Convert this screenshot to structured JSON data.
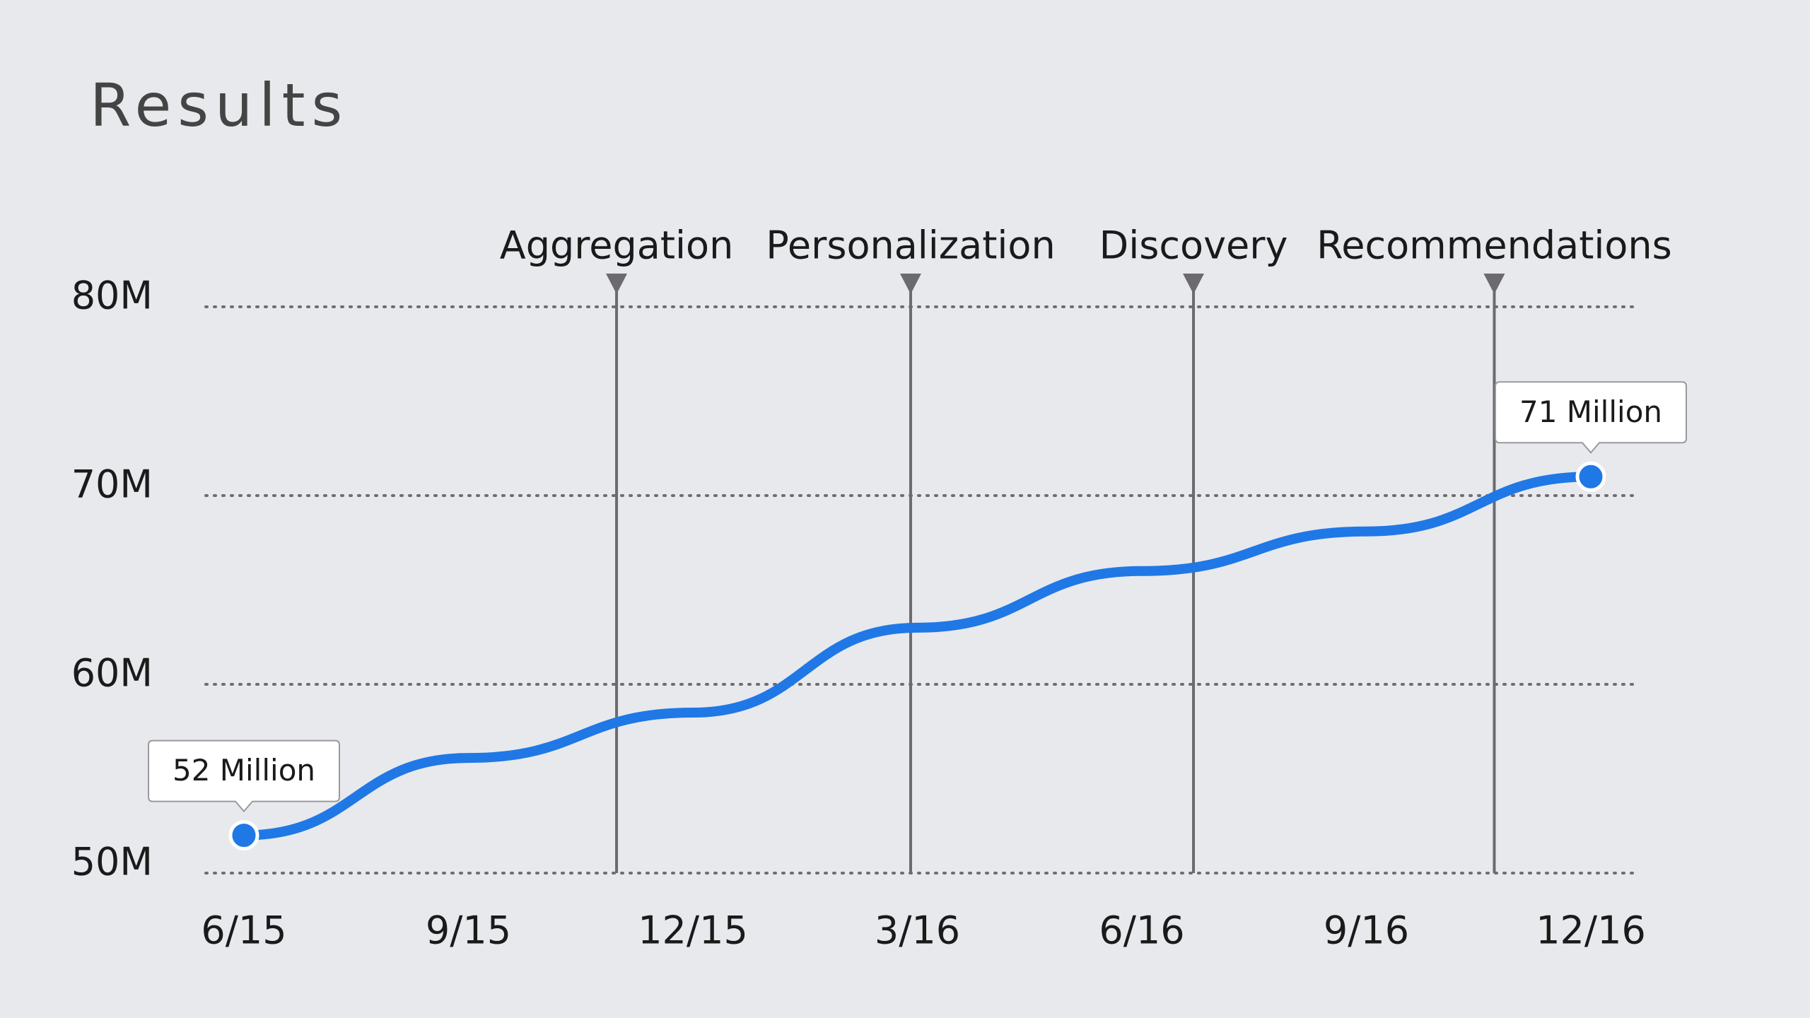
{
  "chart_data": {
    "type": "line",
    "title": "Results",
    "categories": [
      "6/15",
      "9/15",
      "12/15",
      "3/16",
      "6/16",
      "9/16",
      "12/16"
    ],
    "values": [
      52,
      56.1,
      58.5,
      63,
      66,
      68.1,
      71
    ],
    "value_labels": [
      "52 Million",
      null,
      null,
      null,
      null,
      null,
      "71 Million"
    ],
    "color": "#1f78e6",
    "ylim": [
      50,
      80
    ],
    "yticks": [
      {
        "value": 50,
        "label": "50M"
      },
      {
        "value": 60,
        "label": "60M"
      },
      {
        "value": 70,
        "label": "70M"
      },
      {
        "value": 80,
        "label": "80M"
      }
    ],
    "grid": true,
    "annotations": [
      {
        "text": "Aggregation",
        "x": 1.66
      },
      {
        "text": "Personalization",
        "x": 2.97
      },
      {
        "text": "Discovery",
        "x": 4.23
      },
      {
        "text": "Recommendations",
        "x": 5.57
      }
    ]
  }
}
